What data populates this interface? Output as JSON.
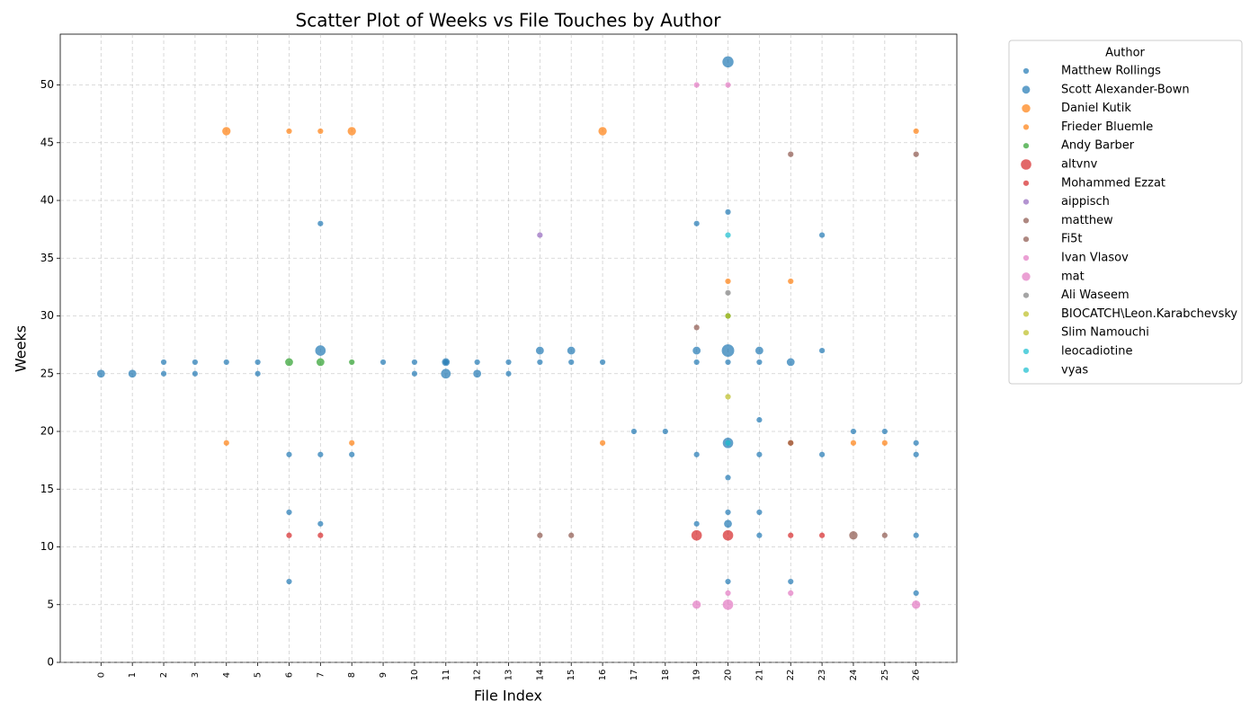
{
  "chart_data": {
    "type": "scatter",
    "title": "Scatter Plot of Weeks vs File Touches by Author",
    "x_label": "File Index",
    "y_label": "Weeks",
    "legend_title": "Author",
    "legend_position": "outside upper right",
    "grid": true,
    "xlim": [
      -1.3,
      27.3
    ],
    "ylim": [
      0,
      54.4
    ],
    "xticks": [
      0,
      1,
      2,
      3,
      4,
      5,
      6,
      7,
      8,
      9,
      10,
      11,
      12,
      13,
      14,
      15,
      16,
      17,
      18,
      19,
      20,
      21,
      22,
      23,
      24,
      25,
      26
    ],
    "yticks": [
      0,
      5,
      10,
      15,
      20,
      25,
      30,
      35,
      40,
      45,
      50
    ],
    "series": [
      {
        "name": "Matthew Rollings",
        "color": "#1f77b4",
        "x": [
          2,
          2,
          3,
          3,
          4,
          5,
          5,
          6,
          6,
          6,
          7,
          7,
          7,
          8,
          9,
          10,
          10,
          11,
          12,
          13,
          13,
          14,
          15,
          16,
          17,
          18,
          19,
          19,
          19,
          19,
          20,
          20,
          20,
          20,
          20,
          21,
          21,
          21,
          21,
          21,
          22,
          23,
          23,
          23,
          24,
          25,
          26,
          26,
          26,
          26
        ],
        "values": [
          26,
          25,
          26,
          25,
          26,
          26,
          25,
          18,
          13,
          7,
          38,
          18,
          12,
          18,
          26,
          26,
          25,
          26,
          26,
          26,
          25,
          26,
          26,
          26,
          20,
          20,
          38,
          26,
          18,
          12,
          39,
          26,
          16,
          13,
          7,
          21,
          26,
          18,
          13,
          11,
          7,
          37,
          27,
          18,
          20,
          20,
          19,
          18,
          11,
          6
        ],
        "sizes": [
          20,
          20,
          20,
          20,
          20,
          20,
          20,
          20,
          20,
          20,
          20,
          20,
          20,
          20,
          20,
          20,
          20,
          20,
          20,
          20,
          20,
          20,
          20,
          20,
          20,
          20,
          20,
          20,
          20,
          20,
          20,
          20,
          20,
          20,
          20,
          20,
          20,
          20,
          20,
          20,
          20,
          20,
          20,
          20,
          20,
          20,
          20,
          20,
          20,
          20
        ]
      },
      {
        "name": "Scott Alexander-Bown",
        "color": "#1f77b4",
        "x": [
          0,
          1,
          7,
          11,
          11,
          12,
          14,
          15,
          19,
          20,
          20,
          20,
          20,
          21,
          22
        ],
        "values": [
          25,
          25,
          27,
          25,
          26,
          25,
          27,
          27,
          27,
          52,
          27,
          19,
          12,
          27,
          26
        ],
        "sizes": [
          40,
          40,
          70,
          60,
          40,
          40,
          40,
          40,
          40,
          80,
          100,
          70,
          40,
          40,
          40
        ]
      },
      {
        "name": "Daniel Kutik",
        "color": "#ff7f0e",
        "x": [
          4,
          8,
          16
        ],
        "values": [
          46,
          46,
          46
        ],
        "sizes": [
          45,
          45,
          45
        ]
      },
      {
        "name": "Frieder Bluemle",
        "color": "#ff7f0e",
        "x": [
          4,
          6,
          7,
          8,
          16,
          20,
          22,
          22,
          24,
          25,
          26
        ],
        "values": [
          19,
          46,
          46,
          19,
          19,
          33,
          33,
          19,
          19,
          19,
          46
        ],
        "sizes": [
          20,
          20,
          20,
          20,
          20,
          20,
          20,
          20,
          20,
          20,
          20
        ]
      },
      {
        "name": "Andy Barber",
        "color": "#2ca02c",
        "x": [
          8,
          6,
          7,
          20
        ],
        "values": [
          26,
          26,
          26,
          30
        ],
        "sizes": [
          20,
          40,
          40,
          20
        ]
      },
      {
        "name": "altvnv",
        "color": "#d62728",
        "x": [
          19,
          20
        ],
        "values": [
          11,
          11
        ],
        "sizes": [
          70,
          70
        ]
      },
      {
        "name": "Mohammed Ezzat",
        "color": "#d62728",
        "x": [
          6,
          7,
          22,
          23
        ],
        "values": [
          11,
          11,
          11,
          11
        ],
        "sizes": [
          20,
          20,
          20,
          20
        ]
      },
      {
        "name": "aippisch",
        "color": "#9467bd",
        "x": [
          14
        ],
        "values": [
          37
        ],
        "sizes": [
          20
        ]
      },
      {
        "name": "matthew",
        "color": "#8c564b",
        "x": [
          22,
          24,
          26
        ],
        "values": [
          44,
          11,
          44
        ],
        "sizes": [
          20,
          45,
          20
        ]
      },
      {
        "name": "Fi5t",
        "color": "#8c564b",
        "x": [
          19,
          14,
          15,
          25,
          22
        ],
        "values": [
          29,
          11,
          11,
          11,
          19
        ],
        "sizes": [
          20,
          20,
          20,
          20,
          20
        ]
      },
      {
        "name": "Ivan Vlasov",
        "color": "#e377c2",
        "x": [
          19,
          20,
          20,
          22
        ],
        "values": [
          50,
          50,
          6,
          6
        ],
        "sizes": [
          20,
          20,
          20,
          20
        ]
      },
      {
        "name": "mat",
        "color": "#e377c2",
        "x": [
          19,
          20,
          26
        ],
        "values": [
          5,
          5,
          5
        ],
        "sizes": [
          45,
          70,
          45
        ]
      },
      {
        "name": "Ali Waseem",
        "color": "#7f7f7f",
        "x": [
          20
        ],
        "values": [
          32
        ],
        "sizes": [
          20
        ]
      },
      {
        "name": "BIOCATCH\\Leon.Karabchevsky",
        "color": "#bcbd22",
        "x": [
          20
        ],
        "values": [
          23
        ],
        "sizes": [
          20
        ]
      },
      {
        "name": "Slim Namouchi",
        "color": "#bcbd22",
        "x": [
          20
        ],
        "values": [
          30
        ],
        "sizes": [
          20
        ]
      },
      {
        "name": "leocadiotine",
        "color": "#17becf",
        "x": [
          20
        ],
        "values": [
          37
        ],
        "sizes": [
          20
        ]
      },
      {
        "name": "vyas",
        "color": "#17becf",
        "x": [
          20
        ],
        "values": [
          19
        ],
        "sizes": [
          20
        ]
      }
    ]
  }
}
